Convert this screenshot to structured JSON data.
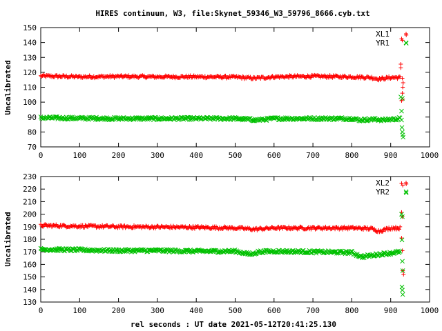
{
  "title": "HIRES continuum, W3, file:Skynet_59346_W3_59796_8666.cyb.txt",
  "xlabel": "rel seconds : UT date 2021-05-12T20:41:25.130",
  "chart_data": [
    {
      "type": "scatter",
      "ylabel": "Uncalibrated",
      "xlim": [
        0,
        1000
      ],
      "ylim": [
        70,
        150
      ],
      "xticks": [
        "0",
        "100",
        "200",
        "300",
        "400",
        "500",
        "600",
        "700",
        "800",
        "900",
        "1000"
      ],
      "yticks": [
        "70",
        "80",
        "90",
        "100",
        "110",
        "120",
        "130",
        "140",
        "150"
      ],
      "grid": false,
      "legend_position": "top-right",
      "series": [
        {
          "name": "XL1",
          "marker": "plus",
          "color": "#ff0000",
          "band": {
            "x": [
              0,
              100,
              200,
              300,
              400,
              500,
              550,
              600,
              700,
              800,
              850,
              870,
              900,
              925
            ],
            "y": [
              117.5,
              117.0,
              117.2,
              117.0,
              117.0,
              116.8,
              116.0,
              117.0,
              117.3,
              117.0,
              116.5,
              115.5,
              116.5,
              116.5
            ]
          },
          "outliers": [
            {
              "x": 928,
              "y": 142.5
            },
            {
              "x": 930,
              "y": 141.5
            },
            {
              "x": 940,
              "y": 145.0
            },
            {
              "x": 926,
              "y": 125.5
            },
            {
              "x": 926,
              "y": 123.0
            },
            {
              "x": 930,
              "y": 116.0
            },
            {
              "x": 932,
              "y": 113.0
            },
            {
              "x": 931,
              "y": 110.0
            },
            {
              "x": 930,
              "y": 106.0
            },
            {
              "x": 931,
              "y": 102.0
            },
            {
              "x": 928,
              "y": 101.0
            }
          ]
        },
        {
          "name": "YR1",
          "marker": "cross",
          "color": "#00c000",
          "band": {
            "x": [
              0,
              100,
              200,
              300,
              400,
              500,
              560,
              600,
              700,
              800,
              820,
              860,
              880,
              925
            ],
            "y": [
              89.5,
              89.2,
              89.0,
              89.0,
              89.0,
              89.0,
              88.0,
              89.0,
              89.0,
              89.0,
              88.0,
              88.5,
              88.0,
              89.0
            ]
          },
          "outliers": [
            {
              "x": 940,
              "y": 139.5
            },
            {
              "x": 928,
              "y": 94.0
            },
            {
              "x": 926,
              "y": 103.5
            },
            {
              "x": 930,
              "y": 102.5
            },
            {
              "x": 928,
              "y": 88.0
            },
            {
              "x": 929,
              "y": 83.0
            },
            {
              "x": 930,
              "y": 80.0
            },
            {
              "x": 931,
              "y": 78.0
            },
            {
              "x": 932,
              "y": 76.5
            }
          ]
        }
      ]
    },
    {
      "type": "scatter",
      "ylabel": "Uncalibrated",
      "xlim": [
        0,
        1000
      ],
      "ylim": [
        130,
        230
      ],
      "xticks": [
        "0",
        "100",
        "200",
        "300",
        "400",
        "500",
        "600",
        "700",
        "800",
        "900",
        "1000"
      ],
      "yticks": [
        "130",
        "140",
        "150",
        "160",
        "170",
        "180",
        "190",
        "200",
        "210",
        "220",
        "230"
      ],
      "grid": false,
      "legend_position": "top-right",
      "series": [
        {
          "name": "XL2",
          "marker": "plus",
          "color": "#ff0000",
          "band": {
            "x": [
              0,
              100,
              200,
              300,
              400,
              500,
              550,
              600,
              700,
              800,
              850,
              870,
              900,
              925
            ],
            "y": [
              191.0,
              190.5,
              190.0,
              189.8,
              189.5,
              189.0,
              188.0,
              189.0,
              189.0,
              189.0,
              188.5,
              186.5,
              189.0,
              189.0
            ]
          },
          "outliers": [
            {
              "x": 928,
              "y": 224.5
            },
            {
              "x": 931,
              "y": 223.0
            },
            {
              "x": 940,
              "y": 224.0
            },
            {
              "x": 928,
              "y": 201.5
            },
            {
              "x": 930,
              "y": 198.0
            },
            {
              "x": 928,
              "y": 181.0
            },
            {
              "x": 930,
              "y": 171.0
            },
            {
              "x": 931,
              "y": 155.0
            },
            {
              "x": 933,
              "y": 152.0
            }
          ]
        },
        {
          "name": "YR2",
          "marker": "cross",
          "color": "#00c000",
          "band": {
            "x": [
              0,
              100,
              200,
              300,
              400,
              500,
              540,
              560,
              600,
              700,
              800,
              825,
              870,
              900,
              925
            ],
            "y": [
              172.0,
              171.5,
              171.0,
              171.0,
              170.5,
              170.5,
              168.0,
              170.0,
              170.5,
              170.0,
              169.5,
              166.0,
              168.0,
              169.0,
              170.0
            ]
          },
          "outliers": [
            {
              "x": 940,
              "y": 217.0
            },
            {
              "x": 928,
              "y": 200.0
            },
            {
              "x": 930,
              "y": 198.0
            },
            {
              "x": 929,
              "y": 179.5
            },
            {
              "x": 930,
              "y": 162.5
            },
            {
              "x": 931,
              "y": 155.0
            },
            {
              "x": 929,
              "y": 142.0
            },
            {
              "x": 930,
              "y": 139.5
            },
            {
              "x": 931,
              "y": 136.0
            }
          ]
        }
      ]
    }
  ]
}
